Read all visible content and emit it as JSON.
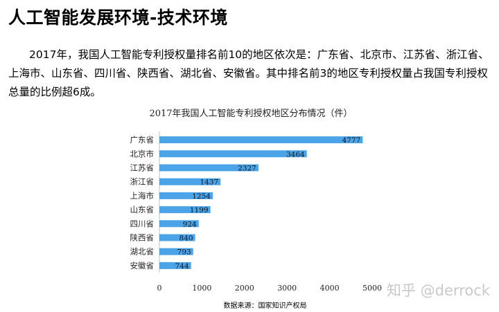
{
  "header": {
    "title": "人工智能发展环境-技术环境"
  },
  "intro": {
    "text": "2017年，我国人工智能专利授权量排名前10的地区依次是：广东省、北京市、江苏省、浙江省、上海市、山东省、四川省、陕西省、湖北省、安徽省。其中排名前3的地区专利授权量占我国专利授权总量的比例超6成。"
  },
  "chart_data": {
    "type": "bar",
    "orientation": "horizontal",
    "title": "2017年我国人工智能专利授权地区分布情况（件）",
    "categories": [
      "广东省",
      "北京市",
      "江苏省",
      "浙江省",
      "上海市",
      "山东省",
      "四川省",
      "陕西省",
      "湖北省",
      "安徽省"
    ],
    "values": [
      4777,
      3464,
      2327,
      1437,
      1254,
      1199,
      924,
      840,
      793,
      744
    ],
    "xlim": [
      0,
      5000
    ],
    "xticks": [
      0,
      1000,
      2000,
      3000,
      4000,
      5000
    ],
    "bar_color": "#4ba3e8",
    "grid": false,
    "data_labels": true
  },
  "watermark": "知乎 @derrock",
  "source": "数据来源：国家知识产权局"
}
